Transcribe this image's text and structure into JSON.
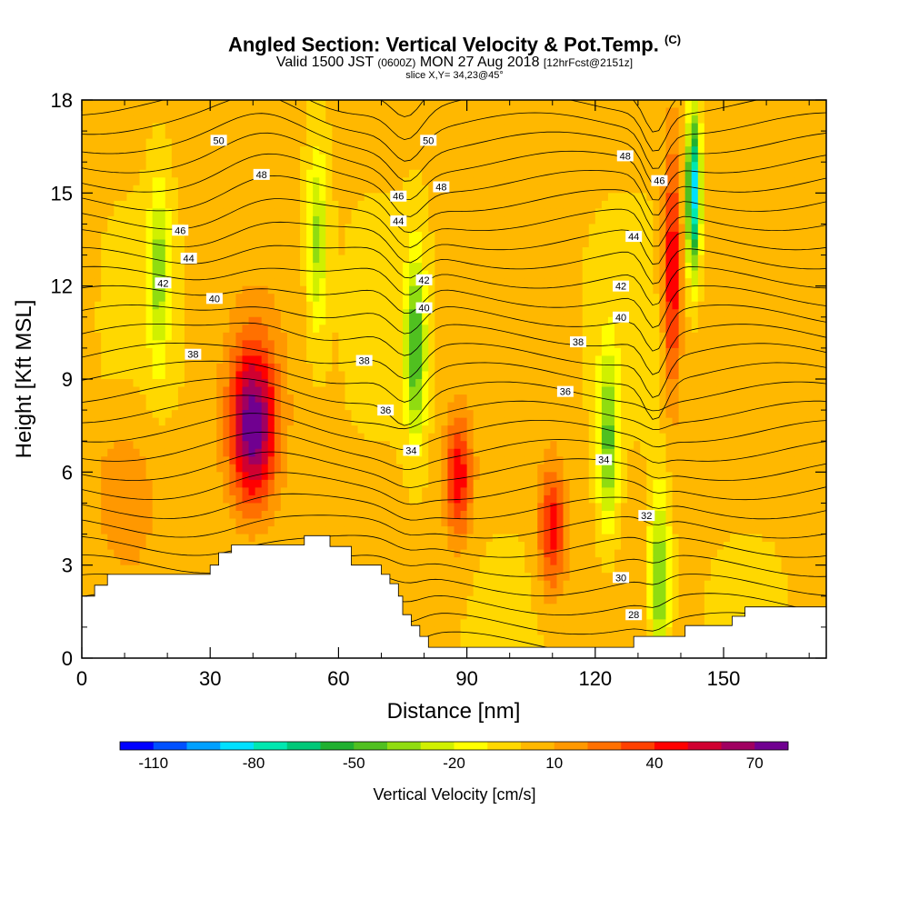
{
  "chart_data": {
    "type": "heatmap",
    "title": "Angled Section: Vertical Velocity & Pot.Temp.",
    "title_mark": "(C)",
    "subtitle": {
      "main_a": "Valid 1500 JST ",
      "utc": "(0600Z)",
      "main_b": " MON 27 Aug 2018 ",
      "fcst": "[12hrFcst@2151z]"
    },
    "slice": "slice X,Y= 34,23@45°",
    "xlabel": "Distance [nm]",
    "ylabel": "Height [Kft MSL]",
    "xlim": [
      0,
      174
    ],
    "ylim": [
      0,
      18
    ],
    "xticks": [
      "0",
      "30",
      "60",
      "90",
      "120",
      "150"
    ],
    "yticks": [
      "0",
      "3",
      "6",
      "9",
      "12",
      "15",
      "18"
    ],
    "colorbar": {
      "label": "Vertical Velocity [cm/s]",
      "ticks": [
        "-110",
        "-80",
        "-50",
        "-20",
        "10",
        "40",
        "70"
      ],
      "colors": [
        "#0000ff",
        "#0050ff",
        "#00a0ff",
        "#00e0ff",
        "#00e8b0",
        "#00c878",
        "#20b030",
        "#50c020",
        "#90dc10",
        "#d0f000",
        "#ffff00",
        "#ffd800",
        "#ffb800",
        "#ff9800",
        "#ff7000",
        "#ff4000",
        "#ff0000",
        "#d00030",
        "#a00060",
        "#700090"
      ]
    },
    "velocity_features": [
      {
        "kind": "updraft",
        "x": 40,
        "y": 7.5,
        "peak": 85
      },
      {
        "kind": "updraft",
        "x": 88,
        "y": 5.8,
        "peak": 55
      },
      {
        "kind": "updraft",
        "x": 110,
        "y": 4.2,
        "peak": 55
      },
      {
        "kind": "updraft",
        "x": 138,
        "y": 12.5,
        "peak": 60
      },
      {
        "kind": "downdraft",
        "x": 78,
        "y": 10,
        "peak": -40
      },
      {
        "kind": "downdraft",
        "x": 123,
        "y": 7,
        "peak": -35
      },
      {
        "kind": "downdraft",
        "x": 143,
        "y": 15,
        "peak": -80
      },
      {
        "kind": "downdraft",
        "x": 135,
        "y": 2.5,
        "peak": -35
      },
      {
        "kind": "downdraft",
        "x": 18,
        "y": 12.5,
        "peak": -25
      },
      {
        "kind": "downdraft",
        "x": 55,
        "y": 13.5,
        "peak": -25
      }
    ],
    "contour_labels": [
      {
        "text": "50",
        "x": 32,
        "y": 16.7
      },
      {
        "text": "50",
        "x": 81,
        "y": 16.7
      },
      {
        "text": "48",
        "x": 42,
        "y": 15.6
      },
      {
        "text": "48",
        "x": 84,
        "y": 15.2
      },
      {
        "text": "48",
        "x": 127,
        "y": 16.2
      },
      {
        "text": "46",
        "x": 23,
        "y": 13.8
      },
      {
        "text": "46",
        "x": 74,
        "y": 14.9
      },
      {
        "text": "46",
        "x": 135,
        "y": 15.4
      },
      {
        "text": "44",
        "x": 25,
        "y": 12.9
      },
      {
        "text": "44",
        "x": 74,
        "y": 14.1
      },
      {
        "text": "44",
        "x": 129,
        "y": 13.6
      },
      {
        "text": "42",
        "x": 19,
        "y": 12.1
      },
      {
        "text": "42",
        "x": 80,
        "y": 12.2
      },
      {
        "text": "42",
        "x": 126,
        "y": 12.0
      },
      {
        "text": "40",
        "x": 31,
        "y": 11.6
      },
      {
        "text": "40",
        "x": 80,
        "y": 11.3
      },
      {
        "text": "40",
        "x": 126,
        "y": 11.0
      },
      {
        "text": "38",
        "x": 26,
        "y": 9.8
      },
      {
        "text": "38",
        "x": 66,
        "y": 9.6
      },
      {
        "text": "38",
        "x": 116,
        "y": 10.2
      },
      {
        "text": "36",
        "x": 71,
        "y": 8.0
      },
      {
        "text": "36",
        "x": 113,
        "y": 8.6
      },
      {
        "text": "34",
        "x": 77,
        "y": 6.7
      },
      {
        "text": "34",
        "x": 122,
        "y": 6.4
      },
      {
        "text": "32",
        "x": 132,
        "y": 4.6
      },
      {
        "text": "30",
        "x": 126,
        "y": 2.6
      },
      {
        "text": "28",
        "x": 129,
        "y": 1.4
      }
    ],
    "terrain": [
      [
        0,
        2
      ],
      [
        3,
        2
      ],
      [
        3,
        2.35
      ],
      [
        6,
        2.35
      ],
      [
        6,
        2.7
      ],
      [
        30,
        2.7
      ],
      [
        30,
        3.0
      ],
      [
        32,
        3.0
      ],
      [
        32,
        3.4
      ],
      [
        35,
        3.4
      ],
      [
        35,
        3.65
      ],
      [
        52,
        3.65
      ],
      [
        52,
        3.95
      ],
      [
        58,
        3.95
      ],
      [
        58,
        3.6
      ],
      [
        63,
        3.6
      ],
      [
        63,
        3.0
      ],
      [
        70,
        3.0
      ],
      [
        70,
        2.7
      ],
      [
        72,
        2.7
      ],
      [
        72,
        2.4
      ],
      [
        74,
        2.4
      ],
      [
        74,
        2.0
      ],
      [
        75,
        2.0
      ],
      [
        75,
        1.4
      ],
      [
        77,
        1.4
      ],
      [
        77,
        1.05
      ],
      [
        79,
        1.05
      ],
      [
        79,
        0.7
      ],
      [
        81,
        0.7
      ],
      [
        81,
        0.35
      ],
      [
        129,
        0.35
      ],
      [
        129,
        0.7
      ],
      [
        141,
        0.7
      ],
      [
        141,
        1.05
      ],
      [
        150,
        1.05
      ],
      [
        150,
        1.05
      ],
      [
        152,
        1.05
      ],
      [
        152,
        1.35
      ],
      [
        155,
        1.35
      ],
      [
        155,
        1.65
      ],
      [
        164,
        1.65
      ],
      [
        164,
        1.65
      ],
      [
        174,
        1.65
      ],
      [
        174,
        0
      ],
      [
        0,
        0
      ]
    ]
  }
}
